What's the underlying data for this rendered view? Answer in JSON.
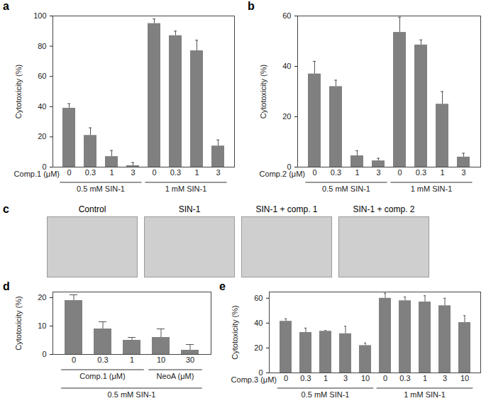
{
  "chart_data": [
    {
      "type": "bar",
      "title": "a",
      "ylabel": "Cytotoxicity (%)",
      "x_label": "Comp.1 (μM)",
      "categories": [
        "0",
        "0.3",
        "1",
        "3",
        "0",
        "0.3",
        "1",
        "3"
      ],
      "values": [
        39,
        21,
        7,
        1,
        95,
        87,
        77,
        14
      ],
      "errors": [
        3,
        5,
        4,
        2,
        3,
        3,
        7,
        4
      ],
      "groups": [
        {
          "label": "0.5 mM SIN-1",
          "count": 4
        },
        {
          "label": "1 mM SIN-1",
          "count": 4
        }
      ],
      "color": "#808080",
      "ylim": [
        0,
        100
      ],
      "yticks": [
        0,
        20,
        40,
        60,
        80,
        100
      ]
    },
    {
      "type": "bar",
      "title": "b",
      "ylabel": "Cytotoxicity (%)",
      "x_label": "Comp.2 (μM)",
      "categories": [
        "0",
        "0.3",
        "1",
        "3",
        "0",
        "0.3",
        "1",
        "3"
      ],
      "values": [
        37,
        32,
        4.5,
        2.5,
        53.5,
        48.5,
        25,
        4
      ],
      "errors": [
        5,
        2.5,
        2,
        1,
        6,
        2,
        5,
        1.5
      ],
      "groups": [
        {
          "label": "0.5 mM SIN-1",
          "count": 4
        },
        {
          "label": "1 mM SIN-1",
          "count": 4
        }
      ],
      "color": "#808080",
      "ylim": [
        0,
        60
      ],
      "yticks": [
        0,
        20,
        40,
        60
      ]
    },
    {
      "type": "bar",
      "title": "d",
      "ylabel": "Cytotoxicity (%)",
      "categories": [
        "0",
        "0.3",
        "1",
        "10",
        "30"
      ],
      "values": [
        19,
        9,
        5,
        6,
        1.5
      ],
      "errors": [
        2,
        2.5,
        1,
        3,
        2
      ],
      "subgroups": [
        {
          "label": "Comp.1 (μM)",
          "count": 3
        },
        {
          "label": "NeoA (μM)",
          "count": 2
        }
      ],
      "groups": [
        {
          "label": "0.5 mM SIN-1",
          "count": 5
        }
      ],
      "color": "#808080",
      "ylim": [
        0,
        22
      ],
      "yticks": [
        0,
        10,
        20
      ]
    },
    {
      "type": "bar",
      "title": "e",
      "ylabel": "Cytotoxicity (%)",
      "x_label": "Comp.3 (μM)",
      "categories": [
        "0",
        "0.3",
        "1",
        "3",
        "10",
        "0",
        "0.3",
        "1",
        "3",
        "10"
      ],
      "values": [
        41.5,
        32.5,
        33.5,
        31.5,
        22,
        60,
        58,
        57,
        54,
        40.5
      ],
      "errors": [
        2,
        3.5,
        0.5,
        6,
        2,
        4,
        3,
        5,
        6,
        5.5
      ],
      "groups": [
        {
          "label": "0.5 mM SIN-1",
          "count": 5
        },
        {
          "label": "1 mM SIN-1",
          "count": 5
        }
      ],
      "color": "#808080",
      "ylim": [
        0,
        65
      ],
      "yticks": [
        0,
        20,
        40,
        60
      ]
    }
  ],
  "images": {
    "title": "c",
    "captions": [
      "Control",
      "SIN-1",
      "SIN-1 + comp. 1",
      "SIN-1 + comp. 2"
    ]
  }
}
